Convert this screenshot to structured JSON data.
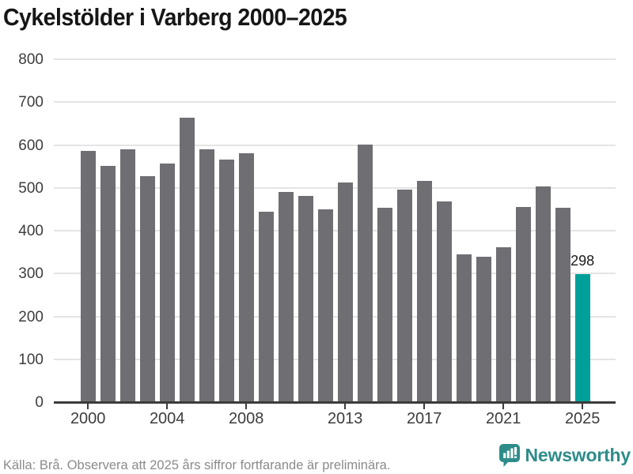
{
  "title": "Cykelstölder i Varberg 2000–2025",
  "footer": {
    "source": "Källa: Brå. Observera att 2025 års siffror fortfarande är preliminära.",
    "brand": "Newsworthy"
  },
  "colors": {
    "bar": "#6e6e73",
    "highlight": "#00a099",
    "grid": "#e4e4e4",
    "axis": "#3b3b3b",
    "tick_label": "#3d3d3d",
    "title_text": "#161616",
    "footer_text": "#8b8b8b",
    "brand_teal": "#2e8c8a",
    "value_label": "#1a1a1a"
  },
  "chart_data": {
    "type": "bar",
    "title": "Cykelstölder i Varberg 2000–2025",
    "categories": [
      2000,
      2001,
      2002,
      2003,
      2004,
      2005,
      2006,
      2007,
      2008,
      2009,
      2010,
      2011,
      2012,
      2013,
      2014,
      2015,
      2016,
      2017,
      2018,
      2019,
      2020,
      2021,
      2022,
      2023,
      2024,
      2025
    ],
    "values": [
      587,
      552,
      590,
      527,
      556,
      664,
      590,
      566,
      581,
      445,
      490,
      482,
      449,
      513,
      601,
      454,
      495,
      516,
      469,
      344,
      339,
      361,
      456,
      504,
      454,
      298
    ],
    "highlight_index": 25,
    "value_labels": {
      "25": "298"
    },
    "xlabel": "",
    "ylabel": "",
    "ylim": [
      0,
      800
    ],
    "yticks": [
      0,
      100,
      200,
      300,
      400,
      500,
      600,
      700,
      800
    ],
    "xticks": [
      {
        "label": "2000",
        "index": 0
      },
      {
        "label": "2004",
        "index": 4
      },
      {
        "label": "2008",
        "index": 8
      },
      {
        "label": "2013",
        "index": 13
      },
      {
        "label": "2017",
        "index": 17
      },
      {
        "label": "2021",
        "index": 21
      },
      {
        "label": "2025",
        "index": 25
      }
    ],
    "grid": "horizontal",
    "legend": "none"
  }
}
